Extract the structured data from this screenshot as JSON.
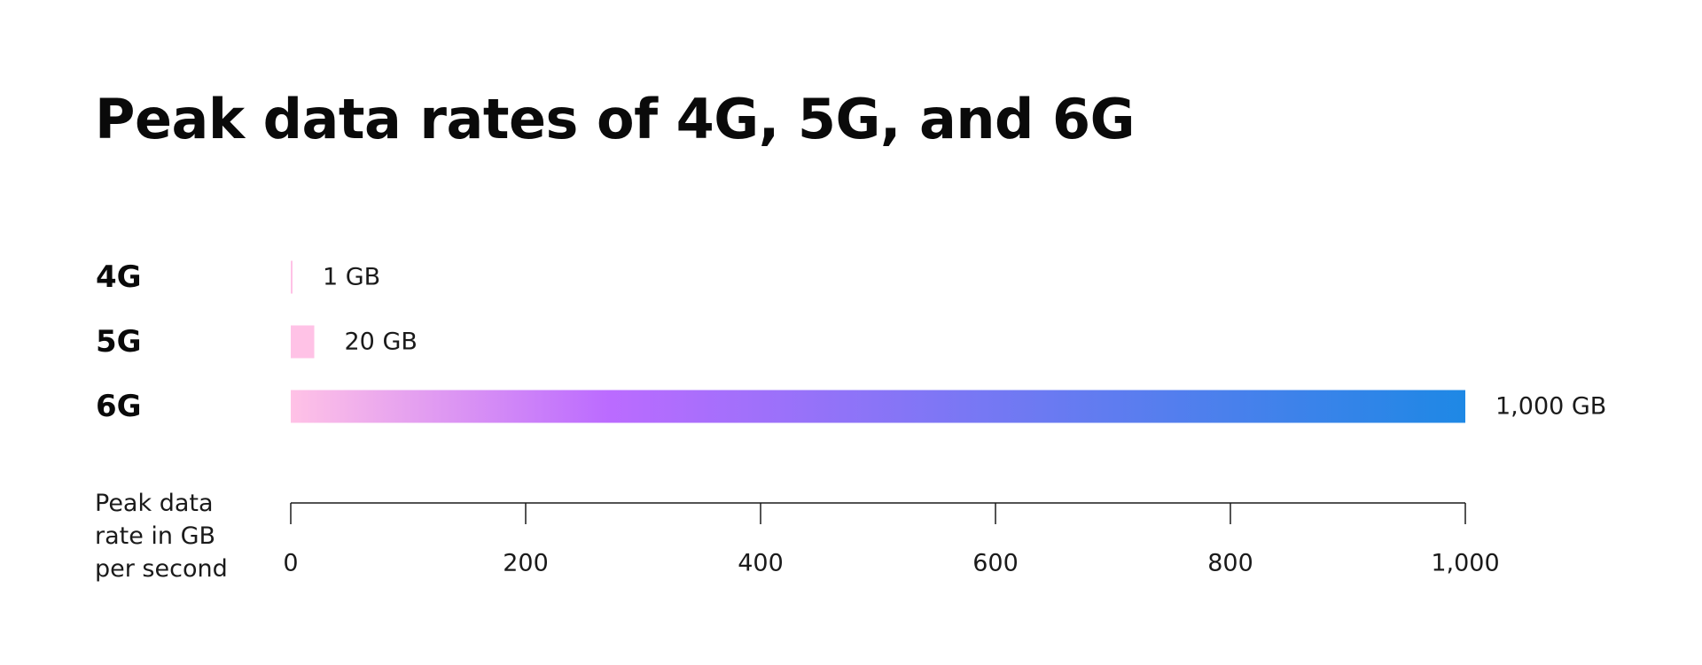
{
  "chart_data": {
    "type": "bar",
    "orientation": "horizontal",
    "title": "Peak data rates of 4G, 5G, and 6G",
    "categories": [
      "4G",
      "5G",
      "6G"
    ],
    "values": [
      1,
      20,
      1000
    ],
    "value_labels": [
      "1 GB",
      "20 GB",
      "1,000 GB"
    ],
    "xlabel_lines": [
      "Peak data",
      "rate in GB",
      "per second"
    ],
    "xlim": [
      0,
      1000
    ],
    "xticks": [
      0,
      200,
      400,
      600,
      800,
      1000
    ],
    "xtick_labels": [
      "0",
      "200",
      "400",
      "600",
      "800",
      "1,000"
    ],
    "grid": false,
    "legend": "none",
    "colors": {
      "pink": "#FFC2E6",
      "purple": "#BB6BFF",
      "blue": "#1E88E5"
    }
  }
}
